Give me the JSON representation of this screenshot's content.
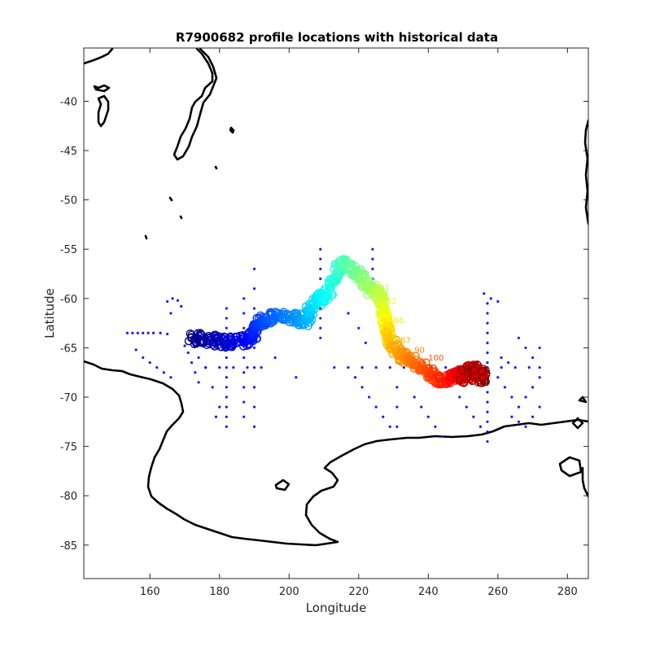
{
  "chart_data": {
    "type": "scatter",
    "title": "R7900682 profile locations with historical data",
    "xlabel": "Longitude",
    "ylabel": "Latitude",
    "xlim": [
      141,
      286
    ],
    "ylim": [
      -88.4,
      -34.6
    ],
    "xticks": [
      160,
      180,
      200,
      220,
      240,
      260,
      280
    ],
    "yticks": [
      -40,
      -45,
      -50,
      -55,
      -60,
      -65,
      -70,
      -75,
      -80,
      -85
    ],
    "grid": false,
    "legend": "none",
    "colormap": "jet",
    "colors": {
      "historical": "#1a1aff",
      "coastline": "#000000",
      "axis": "#262626"
    },
    "series": [
      {
        "markers": "dots",
        "description_points": [
          [
            153.5,
            -63.5
          ],
          [
            155,
            -63.5
          ],
          [
            156.5,
            -63.5
          ],
          [
            158,
            -63.5
          ],
          [
            159.5,
            -63.5
          ],
          [
            161,
            -63.5
          ],
          [
            163,
            -63.5
          ],
          [
            165,
            -63.6
          ],
          [
            156,
            -65.2
          ],
          [
            158,
            -66
          ],
          [
            160,
            -66.5
          ],
          [
            162,
            -67
          ],
          [
            164,
            -67.5
          ],
          [
            166,
            -68
          ],
          [
            170,
            -64.8
          ],
          [
            174,
            -66
          ],
          [
            176,
            -67
          ],
          [
            178,
            -69
          ],
          [
            180,
            -71
          ],
          [
            179,
            -72
          ],
          [
            171,
            -65.5
          ],
          [
            172,
            -66.5
          ],
          [
            173,
            -67.5
          ],
          [
            174,
            -68.5
          ],
          [
            166,
            -61.5
          ],
          [
            165,
            -60.3
          ],
          [
            166.5,
            -60
          ],
          [
            168,
            -60.2
          ],
          [
            169,
            -60.8
          ],
          [
            176,
            -67
          ],
          [
            180,
            -67
          ],
          [
            184,
            -67
          ],
          [
            188,
            -67
          ],
          [
            192,
            -67
          ],
          [
            182,
            -61
          ],
          [
            182,
            -62
          ],
          [
            182,
            -63
          ],
          [
            182,
            -64
          ],
          [
            182,
            -65
          ],
          [
            182,
            -66
          ],
          [
            182,
            -67
          ],
          [
            182,
            -68
          ],
          [
            182,
            -69
          ],
          [
            182,
            -70
          ],
          [
            182,
            -71
          ],
          [
            182,
            -72
          ],
          [
            182,
            -73
          ],
          [
            187,
            -60
          ],
          [
            187,
            -61.5
          ],
          [
            187,
            -63
          ],
          [
            187,
            -64.5
          ],
          [
            187,
            -66
          ],
          [
            187,
            -67.5
          ],
          [
            187,
            -69
          ],
          [
            187,
            -70.5
          ],
          [
            187,
            -72
          ],
          [
            190,
            -57
          ],
          [
            190,
            -59
          ],
          [
            190,
            -61
          ],
          [
            190,
            -63
          ],
          [
            190,
            -65
          ],
          [
            190,
            -67
          ],
          [
            190,
            -69
          ],
          [
            190,
            -71
          ],
          [
            190,
            -73
          ],
          [
            196,
            -66
          ],
          [
            202,
            -68
          ],
          [
            209,
            -55
          ],
          [
            209,
            -56
          ],
          [
            209,
            -57
          ],
          [
            209,
            -58
          ],
          [
            209,
            -60
          ],
          [
            209,
            -61
          ],
          [
            209,
            -62
          ],
          [
            209,
            -63
          ],
          [
            209,
            -64
          ],
          [
            213,
            -58
          ],
          [
            217,
            -61.5
          ],
          [
            220,
            -63
          ],
          [
            222,
            -64.5
          ],
          [
            224,
            -55
          ],
          [
            224,
            -56
          ],
          [
            224,
            -57
          ],
          [
            224,
            -58
          ],
          [
            224,
            -59
          ],
          [
            229,
            -62
          ],
          [
            229,
            -63
          ],
          [
            229,
            -64
          ],
          [
            229,
            -65
          ],
          [
            213,
            -67
          ],
          [
            217,
            -67
          ],
          [
            221,
            -67
          ],
          [
            225,
            -67
          ],
          [
            229,
            -67
          ],
          [
            233,
            -67
          ],
          [
            237,
            -67
          ],
          [
            241,
            -67
          ],
          [
            245,
            -67
          ],
          [
            249,
            -67
          ],
          [
            253,
            -67
          ],
          [
            257,
            -67
          ],
          [
            261,
            -67
          ],
          [
            265,
            -67
          ],
          [
            269,
            -67
          ],
          [
            272,
            -67
          ],
          [
            219,
            -68
          ],
          [
            221,
            -69
          ],
          [
            223,
            -70
          ],
          [
            225,
            -71
          ],
          [
            227,
            -72
          ],
          [
            229,
            -73
          ],
          [
            231,
            -69
          ],
          [
            231,
            -71
          ],
          [
            231,
            -73
          ],
          [
            236,
            -70
          ],
          [
            238,
            -71
          ],
          [
            240,
            -72
          ],
          [
            242,
            -73
          ],
          [
            244,
            -74
          ],
          [
            249,
            -70
          ],
          [
            251,
            -71
          ],
          [
            253,
            -72
          ],
          [
            255,
            -73
          ],
          [
            257,
            -74.5
          ],
          [
            257,
            -60.5
          ],
          [
            257,
            -61.5
          ],
          [
            257,
            -62.5
          ],
          [
            257,
            -63.5
          ],
          [
            257,
            -64.5
          ],
          [
            257,
            -65.5
          ],
          [
            257,
            -66.5
          ],
          [
            257,
            -67.5
          ],
          [
            257,
            -68.5
          ],
          [
            257,
            -69.5
          ],
          [
            257,
            -70.5
          ],
          [
            257,
            -71.5
          ],
          [
            257,
            -72.5
          ],
          [
            257,
            -73.5
          ],
          [
            256,
            -59.5
          ],
          [
            258,
            -60
          ],
          [
            260,
            -60.3
          ],
          [
            260,
            -68
          ],
          [
            262,
            -69
          ],
          [
            264,
            -70
          ],
          [
            266,
            -71
          ],
          [
            268,
            -70
          ],
          [
            270,
            -69
          ],
          [
            272,
            -68
          ],
          [
            261,
            -66
          ],
          [
            263,
            -66.5
          ],
          [
            266,
            -64
          ],
          [
            268,
            -65
          ],
          [
            270,
            -66
          ],
          [
            272,
            -65
          ],
          [
            264,
            -72
          ],
          [
            266,
            -72.5
          ],
          [
            268,
            -73
          ],
          [
            270,
            -72
          ],
          [
            272,
            -71
          ]
        ]
      }
    ],
    "track": [
      [
        172,
        -64
      ],
      [
        176,
        -64.2
      ],
      [
        180,
        -64.3
      ],
      [
        184,
        -64.4
      ],
      [
        188,
        -64.3
      ],
      [
        190,
        -63.5
      ],
      [
        191,
        -62.5
      ],
      [
        194,
        -62
      ],
      [
        198,
        -61.8
      ],
      [
        202,
        -62
      ],
      [
        205,
        -62.2
      ],
      [
        206,
        -61
      ],
      [
        208,
        -60.2
      ],
      [
        211,
        -59.5
      ],
      [
        213,
        -58
      ],
      [
        215,
        -56.3
      ],
      [
        218,
        -57
      ],
      [
        221,
        -58
      ],
      [
        223,
        -59
      ],
      [
        226,
        -59.5
      ],
      [
        227,
        -61
      ],
      [
        227.5,
        -62
      ],
      [
        228,
        -63
      ],
      [
        229,
        -64
      ],
      [
        230.5,
        -65.2
      ],
      [
        233,
        -65.8
      ],
      [
        236,
        -66.5
      ],
      [
        239,
        -67.2
      ],
      [
        242,
        -68
      ],
      [
        245,
        -68.2
      ],
      [
        248,
        -67.8
      ],
      [
        250,
        -67.5
      ],
      [
        253,
        -67.2
      ],
      [
        255,
        -67.6
      ],
      [
        256,
        -68
      ]
    ],
    "labels": {
      "profiles_visible": [
        "8",
        "9",
        "10",
        "11",
        "12",
        "86",
        "87",
        "90",
        "100"
      ]
    }
  }
}
